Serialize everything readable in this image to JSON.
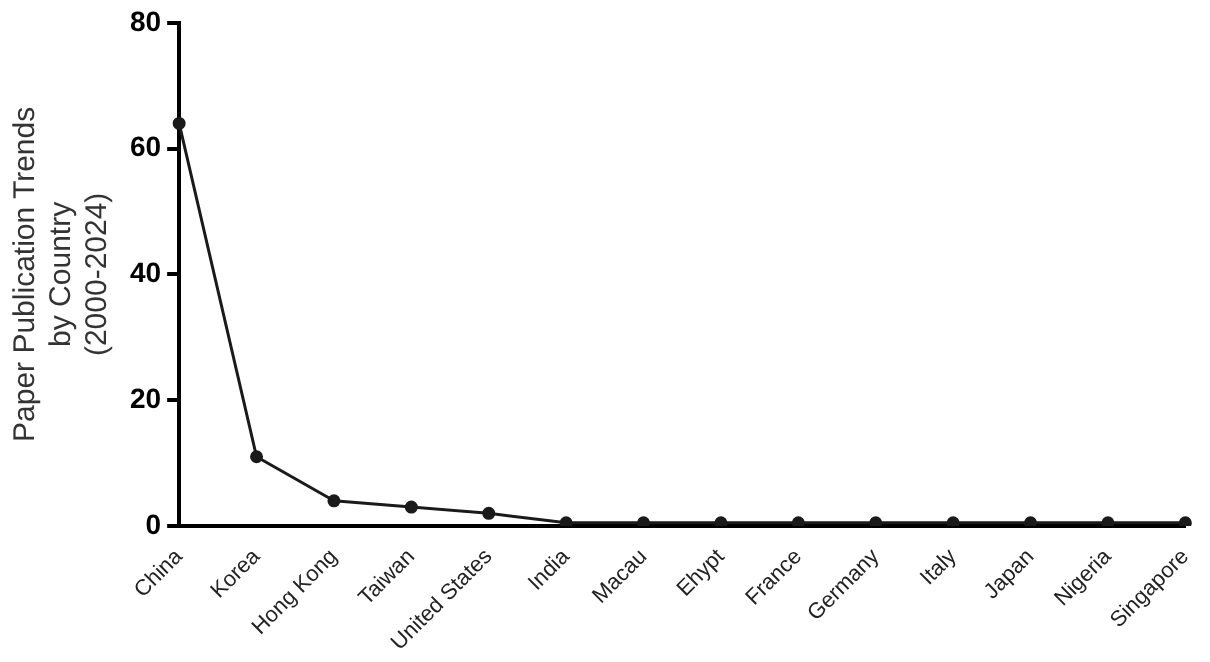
{
  "chart_data": {
    "type": "line",
    "ylabel": "Paper Publication Trends\nby Country\n(2000-2024)",
    "categories": [
      "China",
      "Korea",
      "Hong Kong",
      "Taiwan",
      "United States",
      "India",
      "Macau",
      "Ehypt",
      "France",
      "Germany",
      "Italy",
      "Japan",
      "Nigeria",
      "Singapore"
    ],
    "values": [
      64,
      11,
      4,
      3,
      2,
      0.5,
      0.5,
      0.5,
      0.5,
      0.5,
      0.5,
      0.5,
      0.5,
      0.5
    ],
    "color": "#1a1a1a",
    "ylim": [
      0,
      80
    ],
    "yticks": [
      0,
      20,
      40,
      60,
      80
    ],
    "grid": false,
    "legend": false,
    "marker": "circle",
    "line_style": "solid"
  }
}
